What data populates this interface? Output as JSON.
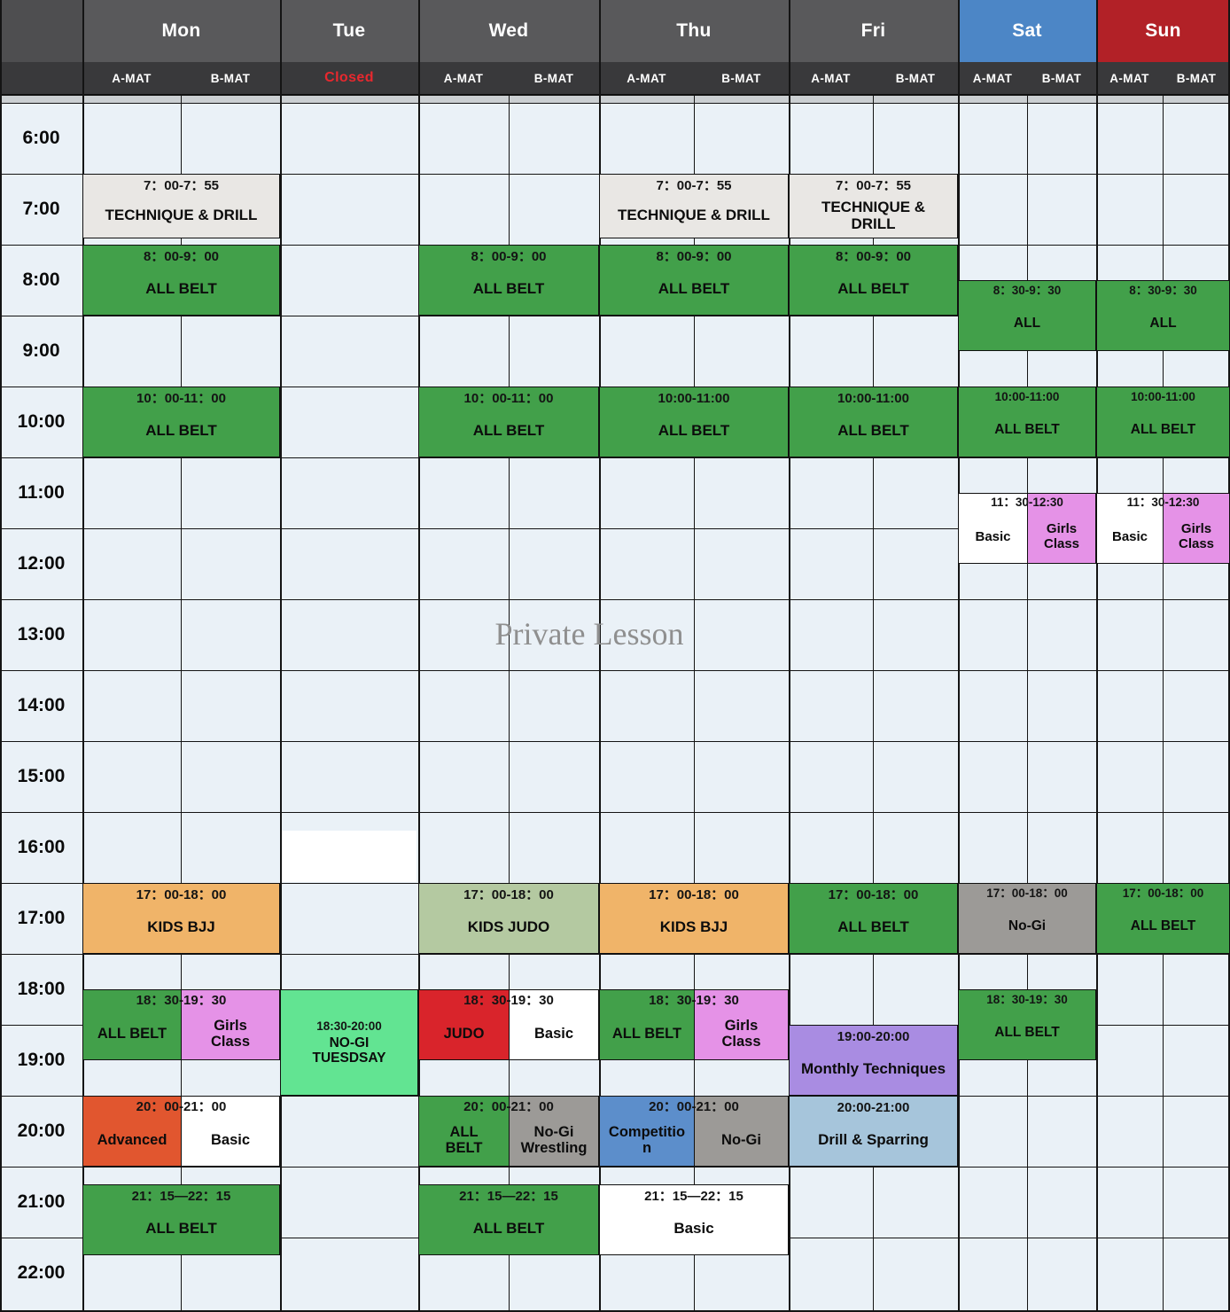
{
  "header": {
    "days": [
      {
        "id": "mon",
        "label": "Mon",
        "color": "#59595b",
        "mats": [
          "A-MAT",
          "B-MAT"
        ]
      },
      {
        "id": "tue",
        "label": "Tue",
        "color": "#59595b",
        "closed": "Closed"
      },
      {
        "id": "wed",
        "label": "Wed",
        "color": "#59595b",
        "mats": [
          "A-MAT",
          "B-MAT"
        ]
      },
      {
        "id": "thu",
        "label": "Thu",
        "color": "#59595b",
        "mats": [
          "A-MAT",
          "B-MAT"
        ]
      },
      {
        "id": "fri",
        "label": "Fri",
        "color": "#59595b",
        "mats": [
          "A-MAT",
          "B-MAT"
        ]
      },
      {
        "id": "sat",
        "label": "Sat",
        "color": "#4c86c6",
        "mats": [
          "A-MAT",
          "B-MAT"
        ]
      },
      {
        "id": "sun",
        "label": "Sun",
        "color": "#b22127",
        "mats": [
          "A-MAT",
          "B-MAT"
        ]
      }
    ]
  },
  "times": [
    "6:00",
    "7:00",
    "8:00",
    "9:00",
    "10:00",
    "11:00",
    "12:00",
    "13:00",
    "14:00",
    "15:00",
    "16:00",
    "17:00",
    "18:00",
    "19:00",
    "20:00",
    "21:00",
    "22:00"
  ],
  "watermark": "Private Lesson",
  "colors": {
    "green": "#42a04a",
    "gray_class": "#e9e7e4",
    "orange": "#f0b469",
    "sage": "#b4c9a1",
    "pink": "#e592e7",
    "mint": "#62e492",
    "red": "#d9242b",
    "red_orange": "#e1562f",
    "blue": "#5c8ecb",
    "gray_dark": "#9c9a97",
    "light_blue": "#a6c5db",
    "purple": "#a98ce2",
    "white": "#ffffff",
    "corner": "#4e4e50",
    "subheader": "#39393b",
    "closed_red": "#e8282e",
    "cell_bg": "#eaf1f7"
  },
  "blocks": [
    {
      "day": "mon",
      "start": 7,
      "end": 7.917,
      "time": "7：00-7：55",
      "label": "TECHNIQUE & DRILL",
      "bg": "gray_class"
    },
    {
      "day": "mon",
      "start": 8,
      "end": 9,
      "time": "8：00-9：00",
      "label": "ALL BELT",
      "bg": "green"
    },
    {
      "day": "mon",
      "start": 10,
      "end": 11,
      "time": "10：00-11：00",
      "label": "ALL BELT",
      "bg": "green"
    },
    {
      "day": "mon",
      "start": 17,
      "end": 18,
      "time": "17：00-18：00",
      "label": "KIDS BJJ",
      "bg": "orange"
    },
    {
      "day": "mon",
      "start": 18.5,
      "end": 19.5,
      "time": "18：30-19：30",
      "parts": [
        {
          "label": "ALL BELT",
          "bg": "green"
        },
        {
          "label": "Girls\nClass",
          "bg": "pink"
        }
      ]
    },
    {
      "day": "mon",
      "start": 20,
      "end": 21,
      "time": "20：00-21：00",
      "parts": [
        {
          "label": "Advanced",
          "bg": "red_orange"
        },
        {
          "label": "Basic",
          "bg": "white"
        }
      ]
    },
    {
      "day": "mon",
      "start": 21.25,
      "end": 22.25,
      "time": "21：15—22：15",
      "label": "ALL BELT",
      "bg": "green"
    },
    {
      "day": "tue",
      "start": 16.26,
      "end": 16.99,
      "patch": true
    },
    {
      "day": "tue",
      "start": 18.5,
      "end": 20,
      "time": "18:30-20:00",
      "label": "NO-GI\nTUESDSAY",
      "bg": "mint"
    },
    {
      "day": "wed",
      "start": 8,
      "end": 9,
      "time": "8：00-9：00",
      "label": "ALL BELT",
      "bg": "green"
    },
    {
      "day": "wed",
      "start": 10,
      "end": 11,
      "time": "10：00-11：00",
      "label": "ALL BELT",
      "bg": "green"
    },
    {
      "day": "wed",
      "start": 17,
      "end": 18,
      "time": "17：00-18：00",
      "label": "KIDS JUDO",
      "bg": "sage"
    },
    {
      "day": "wed",
      "start": 18.5,
      "end": 19.5,
      "time": "18：30-19：30",
      "parts": [
        {
          "label": "JUDO",
          "bg": "red"
        },
        {
          "label": "Basic",
          "bg": "white"
        }
      ]
    },
    {
      "day": "wed",
      "start": 20,
      "end": 21,
      "time": "20：00-21：00",
      "parts": [
        {
          "label": "ALL\nBELT",
          "bg": "green"
        },
        {
          "label": "No-Gi\nWrestling",
          "bg": "gray_dark"
        }
      ]
    },
    {
      "day": "wed",
      "start": 21.25,
      "end": 22.25,
      "time": "21：15—22：15",
      "label": "ALL BELT",
      "bg": "green"
    },
    {
      "day": "thu",
      "start": 7,
      "end": 7.917,
      "time": "7：00-7：55",
      "label": "TECHNIQUE & DRILL",
      "bg": "gray_class"
    },
    {
      "day": "thu",
      "start": 8,
      "end": 9,
      "time": "8：00-9：00",
      "label": "ALL BELT",
      "bg": "green"
    },
    {
      "day": "thu",
      "start": 10,
      "end": 11,
      "time": "10:00-11:00",
      "label": "ALL BELT",
      "bg": "green"
    },
    {
      "day": "thu",
      "start": 17,
      "end": 18,
      "time": "17：00-18：00",
      "label": "KIDS BJJ",
      "bg": "orange"
    },
    {
      "day": "thu",
      "start": 18.5,
      "end": 19.5,
      "time": "18：30-19：30",
      "parts": [
        {
          "label": "ALL BELT",
          "bg": "green"
        },
        {
          "label": "Girls\nClass",
          "bg": "pink"
        }
      ]
    },
    {
      "day": "thu",
      "start": 20,
      "end": 21,
      "time": "20：00-21：00",
      "parts": [
        {
          "label": "Competition",
          "bg": "blue"
        },
        {
          "label": "No-Gi",
          "bg": "gray_dark"
        }
      ]
    },
    {
      "day": "thu",
      "start": 21.25,
      "end": 22.25,
      "time": "21：15—22：15",
      "label": "Basic",
      "bg": "white"
    },
    {
      "day": "fri",
      "start": 7,
      "end": 7.917,
      "time": "7：00-7：55",
      "label": "TECHNIQUE &\nDRILL",
      "bg": "gray_class"
    },
    {
      "day": "fri",
      "start": 8,
      "end": 9,
      "time": "8：00-9：00",
      "label": "ALL BELT",
      "bg": "green"
    },
    {
      "day": "fri",
      "start": 10,
      "end": 11,
      "time": "10:00-11:00",
      "label": "ALL BELT",
      "bg": "green"
    },
    {
      "day": "fri",
      "start": 17,
      "end": 18,
      "time": "17：00-18：00",
      "label": "ALL BELT",
      "bg": "green"
    },
    {
      "day": "fri",
      "start": 19,
      "end": 20,
      "time": "19:00-20:00",
      "label": "Monthly Techniques",
      "bg": "purple"
    },
    {
      "day": "fri",
      "start": 20,
      "end": 21,
      "time": "20:00-21:00",
      "label": "Drill & Sparring",
      "bg": "light_blue"
    },
    {
      "day": "sat",
      "start": 8.5,
      "end": 9.5,
      "time": "8：30-9：30",
      "label": "ALL",
      "bg": "green"
    },
    {
      "day": "sat",
      "start": 10,
      "end": 11,
      "time": "10:00-11:00",
      "label": "ALL BELT",
      "bg": "green"
    },
    {
      "day": "sat",
      "start": 11.5,
      "end": 12.5,
      "time": "11：30-12:30",
      "parts": [
        {
          "label": "Basic",
          "bg": "white"
        },
        {
          "label": "Girls\nClass",
          "bg": "pink"
        }
      ]
    },
    {
      "day": "sat",
      "start": 17,
      "end": 18,
      "time": "17：00-18：00",
      "label": "No-Gi",
      "bg": "gray_dark"
    },
    {
      "day": "sat",
      "start": 18.5,
      "end": 19.5,
      "time": "18：30-19：30",
      "label": "ALL BELT",
      "bg": "green"
    },
    {
      "day": "sun",
      "start": 8.5,
      "end": 9.5,
      "time": "8：30-9：30",
      "label": "ALL",
      "bg": "green"
    },
    {
      "day": "sun",
      "start": 10,
      "end": 11,
      "time": "10:00-11:00",
      "label": "ALL BELT",
      "bg": "green"
    },
    {
      "day": "sun",
      "start": 11.5,
      "end": 12.5,
      "time": "11：30-12:30",
      "parts": [
        {
          "label": "Basic",
          "bg": "white"
        },
        {
          "label": "Girls\nClass",
          "bg": "pink"
        }
      ]
    },
    {
      "day": "sun",
      "start": 17,
      "end": 18,
      "time": "17：00-18：00",
      "label": "ALL BELT",
      "bg": "green"
    }
  ]
}
